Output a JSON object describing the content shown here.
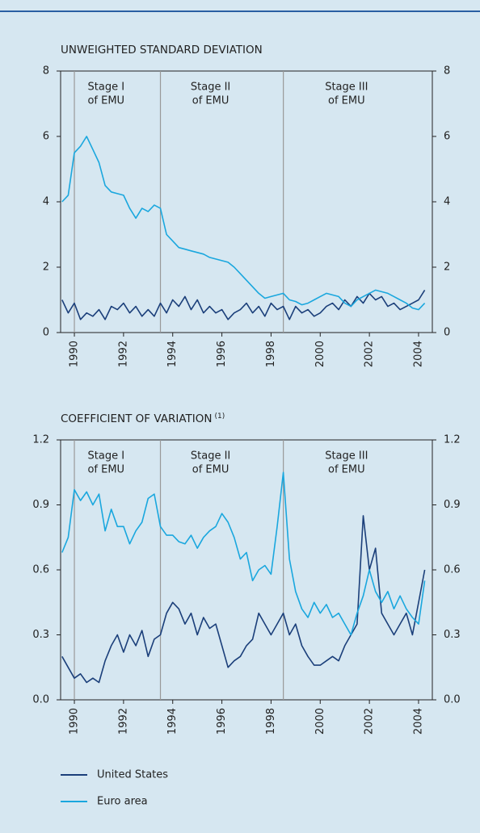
{
  "chart_data": [
    {
      "type": "line",
      "title": "UNWEIGHTED STANDARD DEVIATION",
      "x": [
        1989.5,
        1989.75,
        1990,
        1990.25,
        1990.5,
        1990.75,
        1991,
        1991.25,
        1991.5,
        1991.75,
        1992,
        1992.25,
        1992.5,
        1992.75,
        1993,
        1993.25,
        1993.5,
        1993.75,
        1994,
        1994.25,
        1994.5,
        1994.75,
        1995,
        1995.25,
        1995.5,
        1995.75,
        1996,
        1996.25,
        1996.5,
        1996.75,
        1997,
        1997.25,
        1997.5,
        1997.75,
        1998,
        1998.25,
        1998.5,
        1998.75,
        1999,
        1999.25,
        1999.5,
        1999.75,
        2000,
        2000.25,
        2000.5,
        2000.75,
        2001,
        2001.25,
        2001.5,
        2001.75,
        2002,
        2002.25,
        2002.5,
        2002.75,
        2003,
        2003.25,
        2003.5,
        2003.75,
        2004,
        2004.25
      ],
      "series": [
        {
          "name": "United States",
          "color": "#1b3f7a",
          "values": [
            1.0,
            0.6,
            0.9,
            0.4,
            0.6,
            0.5,
            0.7,
            0.4,
            0.8,
            0.7,
            0.9,
            0.6,
            0.8,
            0.5,
            0.7,
            0.5,
            0.9,
            0.6,
            1.0,
            0.8,
            1.1,
            0.7,
            1.0,
            0.6,
            0.8,
            0.6,
            0.7,
            0.4,
            0.6,
            0.7,
            0.9,
            0.6,
            0.8,
            0.5,
            0.9,
            0.7,
            0.8,
            0.4,
            0.8,
            0.6,
            0.7,
            0.5,
            0.6,
            0.8,
            0.9,
            0.7,
            1.0,
            0.8,
            1.1,
            0.9,
            1.2,
            1.0,
            1.1,
            0.8,
            0.9,
            0.7,
            0.8,
            0.9,
            1.0,
            1.3
          ]
        },
        {
          "name": "Euro area",
          "color": "#1aa7de",
          "values": [
            4.0,
            4.2,
            5.5,
            5.7,
            6.0,
            5.6,
            5.2,
            4.5,
            4.3,
            4.25,
            4.2,
            3.8,
            3.5,
            3.8,
            3.7,
            3.9,
            3.8,
            3.0,
            2.8,
            2.6,
            2.55,
            2.5,
            2.45,
            2.4,
            2.3,
            2.25,
            2.2,
            2.15,
            2.0,
            1.8,
            1.6,
            1.4,
            1.2,
            1.05,
            1.1,
            1.15,
            1.2,
            1.0,
            0.95,
            0.85,
            0.9,
            1.0,
            1.1,
            1.2,
            1.15,
            1.1,
            0.9,
            0.8,
            1.0,
            1.1,
            1.2,
            1.3,
            1.25,
            1.2,
            1.1,
            1.0,
            0.9,
            0.75,
            0.7,
            0.9
          ]
        }
      ],
      "xlim": [
        1989.44,
        2004.56
      ],
      "xticks": [
        1990,
        1992,
        1994,
        1996,
        1998,
        2000,
        2002,
        2004
      ],
      "ylim": [
        0,
        8
      ],
      "yticks": [
        0,
        2,
        4,
        6,
        8
      ],
      "vlines": [
        1990,
        1993.5,
        1998.5
      ],
      "annotations": [
        [
          "Stage I",
          "of EMU"
        ],
        [
          "Stage II",
          "of EMU"
        ],
        [
          "Stage III",
          "of EMU"
        ]
      ]
    },
    {
      "type": "line",
      "title": "COEFFICIENT OF VARIATION",
      "title_note": "(1)",
      "x": [
        1989.5,
        1989.75,
        1990,
        1990.25,
        1990.5,
        1990.75,
        1991,
        1991.25,
        1991.5,
        1991.75,
        1992,
        1992.25,
        1992.5,
        1992.75,
        1993,
        1993.25,
        1993.5,
        1993.75,
        1994,
        1994.25,
        1994.5,
        1994.75,
        1995,
        1995.25,
        1995.5,
        1995.75,
        1996,
        1996.25,
        1996.5,
        1996.75,
        1997,
        1997.25,
        1997.5,
        1997.75,
        1998,
        1998.25,
        1998.5,
        1998.75,
        1999,
        1999.25,
        1999.5,
        1999.75,
        2000,
        2000.25,
        2000.5,
        2000.75,
        2001,
        2001.25,
        2001.5,
        2001.75,
        2002,
        2002.25,
        2002.5,
        2002.75,
        2003,
        2003.25,
        2003.5,
        2003.75,
        2004,
        2004.25
      ],
      "series": [
        {
          "name": "United States",
          "color": "#1b3f7a",
          "values": [
            0.2,
            0.15,
            0.1,
            0.12,
            0.08,
            0.1,
            0.08,
            0.18,
            0.25,
            0.3,
            0.22,
            0.3,
            0.25,
            0.32,
            0.2,
            0.28,
            0.3,
            0.4,
            0.45,
            0.42,
            0.35,
            0.4,
            0.3,
            0.38,
            0.33,
            0.35,
            0.25,
            0.15,
            0.18,
            0.2,
            0.25,
            0.28,
            0.4,
            0.35,
            0.3,
            0.35,
            0.4,
            0.3,
            0.35,
            0.25,
            0.2,
            0.16,
            0.16,
            0.18,
            0.2,
            0.18,
            0.25,
            0.3,
            0.35,
            0.85,
            0.6,
            0.7,
            0.4,
            0.35,
            0.3,
            0.35,
            0.4,
            0.3,
            0.45,
            0.6
          ]
        },
        {
          "name": "Euro area",
          "color": "#1aa7de",
          "values": [
            0.68,
            0.75,
            0.97,
            0.92,
            0.96,
            0.9,
            0.95,
            0.78,
            0.88,
            0.8,
            0.8,
            0.72,
            0.78,
            0.82,
            0.93,
            0.95,
            0.8,
            0.76,
            0.76,
            0.73,
            0.72,
            0.76,
            0.7,
            0.75,
            0.78,
            0.8,
            0.86,
            0.82,
            0.75,
            0.65,
            0.68,
            0.55,
            0.6,
            0.62,
            0.58,
            0.8,
            1.05,
            0.65,
            0.5,
            0.42,
            0.38,
            0.45,
            0.4,
            0.44,
            0.38,
            0.4,
            0.35,
            0.3,
            0.4,
            0.48,
            0.6,
            0.5,
            0.45,
            0.5,
            0.42,
            0.48,
            0.42,
            0.38,
            0.35,
            0.55
          ]
        }
      ],
      "xlim": [
        1989.44,
        2004.56
      ],
      "xticks": [
        1990,
        1992,
        1994,
        1996,
        1998,
        2000,
        2002,
        2004
      ],
      "ylim": [
        0,
        1.2
      ],
      "yticks": [
        {
          "value": 0,
          "label": "0.0"
        },
        0.3,
        0.6,
        0.9,
        1.2
      ],
      "vlines": [
        1990,
        1993.5,
        1998.5
      ],
      "annotations": [
        [
          "Stage I",
          "of EMU"
        ],
        [
          "Stage II",
          "of EMU"
        ],
        [
          "Stage III",
          "of EMU"
        ]
      ]
    }
  ]
}
